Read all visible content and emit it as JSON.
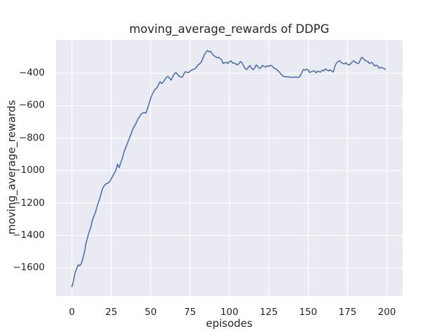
{
  "chart_data": {
    "type": "line",
    "title": "moving_average_rewards of DDPG",
    "xlabel": "episodes",
    "ylabel": "moving_average_rewards",
    "legend": null,
    "grid": true,
    "style": "seaborn-darkgrid",
    "colors": {
      "figure_bg": "#ffffff",
      "axes_bg": "#eaeaf2",
      "grid": "#ffffff",
      "line": "#4c72b0",
      "text": "#262626"
    },
    "xlim": [
      -10.1,
      209.9
    ],
    "ylim": [
      -1772.7,
      -195
    ],
    "x_ticks": [
      {
        "value": 0,
        "label": "0"
      },
      {
        "value": 25,
        "label": "25"
      },
      {
        "value": 50,
        "label": "50"
      },
      {
        "value": 75,
        "label": "75"
      },
      {
        "value": 100,
        "label": "100"
      },
      {
        "value": 125,
        "label": "125"
      },
      {
        "value": 150,
        "label": "150"
      },
      {
        "value": 175,
        "label": "175"
      },
      {
        "value": 200,
        "label": "200"
      }
    ],
    "y_ticks": [
      {
        "value": -400,
        "label": "−400"
      },
      {
        "value": -600,
        "label": "−600"
      },
      {
        "value": -800,
        "label": "−800"
      },
      {
        "value": -1000,
        "label": "−1000"
      },
      {
        "value": -1200,
        "label": "−1200"
      },
      {
        "value": -1400,
        "label": "−1400"
      },
      {
        "value": -1600,
        "label": "−1600"
      }
    ],
    "series": [
      {
        "name": "moving_average_rewards",
        "x": [
          0,
          1,
          2,
          3,
          4,
          5,
          6,
          7,
          8,
          9,
          10,
          11,
          12,
          13,
          14,
          15,
          16,
          17,
          18,
          19,
          20,
          21,
          22,
          23,
          24,
          25,
          26,
          27,
          28,
          29,
          30,
          31,
          32,
          33,
          34,
          35,
          36,
          37,
          38,
          39,
          40,
          41,
          42,
          43,
          44,
          45,
          46,
          47,
          48,
          49,
          50,
          51,
          52,
          53,
          54,
          55,
          56,
          57,
          58,
          59,
          60,
          61,
          62,
          63,
          64,
          65,
          66,
          67,
          68,
          69,
          70,
          71,
          72,
          73,
          74,
          75,
          76,
          77,
          78,
          79,
          80,
          81,
          82,
          83,
          84,
          85,
          86,
          87,
          88,
          89,
          90,
          91,
          92,
          93,
          94,
          95,
          96,
          97,
          98,
          99,
          100,
          101,
          102,
          103,
          104,
          105,
          106,
          107,
          108,
          109,
          110,
          111,
          112,
          113,
          114,
          115,
          116,
          117,
          118,
          119,
          120,
          121,
          122,
          123,
          124,
          125,
          126,
          127,
          128,
          129,
          130,
          131,
          132,
          133,
          134,
          135,
          136,
          137,
          138,
          139,
          140,
          141,
          142,
          143,
          144,
          145,
          146,
          147,
          148,
          149,
          150,
          151,
          152,
          153,
          154,
          155,
          156,
          157,
          158,
          159,
          160,
          161,
          162,
          163,
          164,
          165,
          166,
          167,
          168,
          169,
          170,
          171,
          172,
          173,
          174,
          175,
          176,
          177,
          178,
          179,
          180,
          181,
          182,
          183,
          184,
          185,
          186,
          187,
          188,
          189,
          190,
          191,
          192,
          193,
          194,
          195,
          196,
          197,
          198,
          199
        ],
        "y": [
          -1715,
          -1680,
          -1630,
          -1605,
          -1580,
          -1586,
          -1572,
          -1540,
          -1500,
          -1445,
          -1410,
          -1375,
          -1350,
          -1305,
          -1280,
          -1255,
          -1220,
          -1190,
          -1160,
          -1125,
          -1100,
          -1087,
          -1080,
          -1075,
          -1068,
          -1050,
          -1032,
          -1014,
          -995,
          -960,
          -982,
          -952,
          -925,
          -888,
          -862,
          -838,
          -812,
          -788,
          -762,
          -737,
          -722,
          -702,
          -681,
          -668,
          -651,
          -645,
          -642,
          -646,
          -618,
          -588,
          -556,
          -529,
          -513,
          -497,
          -490,
          -470,
          -452,
          -464,
          -455,
          -439,
          -426,
          -420,
          -431,
          -443,
          -423,
          -403,
          -397,
          -406,
          -418,
          -423,
          -425,
          -406,
          -391,
          -394,
          -397,
          -387,
          -381,
          -377,
          -374,
          -364,
          -350,
          -343,
          -333,
          -312,
          -288,
          -273,
          -261,
          -268,
          -264,
          -279,
          -292,
          -296,
          -305,
          -302,
          -309,
          -316,
          -340,
          -336,
          -333,
          -341,
          -329,
          -324,
          -338,
          -336,
          -343,
          -349,
          -341,
          -328,
          -337,
          -355,
          -372,
          -377,
          -364,
          -353,
          -368,
          -378,
          -369,
          -349,
          -358,
          -371,
          -367,
          -352,
          -358,
          -363,
          -354,
          -359,
          -351,
          -355,
          -366,
          -372,
          -377,
          -387,
          -396,
          -409,
          -418,
          -421,
          -423,
          -421,
          -424,
          -426,
          -424,
          -426,
          -423,
          -425,
          -426,
          -415,
          -396,
          -377,
          -382,
          -375,
          -381,
          -396,
          -391,
          -388,
          -386,
          -398,
          -388,
          -391,
          -393,
          -380,
          -386,
          -373,
          -381,
          -386,
          -379,
          -388,
          -392,
          -358,
          -337,
          -329,
          -323,
          -334,
          -340,
          -342,
          -336,
          -346,
          -350,
          -341,
          -331,
          -323,
          -334,
          -338,
          -341,
          -321,
          -303,
          -309,
          -320,
          -325,
          -329,
          -341,
          -334,
          -338,
          -356,
          -350,
          -353,
          -370,
          -363,
          -367,
          -370,
          -375
        ]
      }
    ]
  }
}
